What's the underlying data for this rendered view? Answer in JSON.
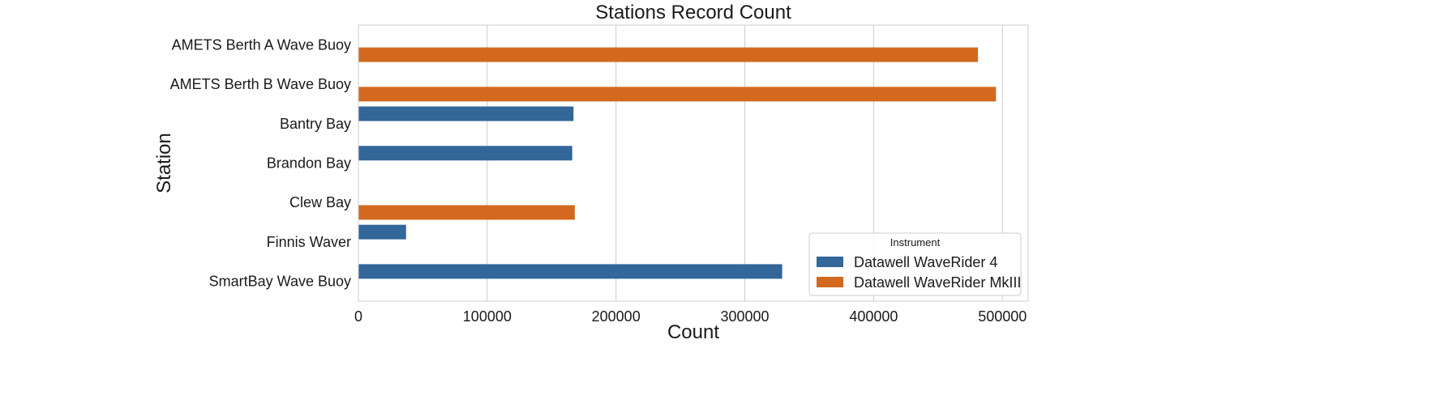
{
  "chart_data": {
    "type": "bar",
    "orientation": "horizontal",
    "title": "Stations Record Count",
    "xlabel": "Count",
    "ylabel": "Station",
    "xlim": [
      0,
      520000
    ],
    "xticks": [
      0,
      100000,
      200000,
      300000,
      400000,
      500000
    ],
    "grid": "vertical",
    "categories": [
      "AMETS Berth A Wave Buoy",
      "AMETS Berth B Wave Buoy",
      "Bantry Bay",
      "Brandon Bay",
      "Clew Bay",
      "Finnis Waver",
      "SmartBay Wave Buoy"
    ],
    "legend": {
      "title": "Instrument",
      "position": "lower-right"
    },
    "series": [
      {
        "name": "Datawell WaveRider 4",
        "color": "#336699",
        "values": [
          null,
          null,
          167000,
          166000,
          null,
          37000,
          329000
        ]
      },
      {
        "name": "Datawell WaveRider MkIII",
        "color": "#d2691e",
        "values": [
          481000,
          495000,
          null,
          null,
          168000,
          null,
          null
        ]
      }
    ]
  }
}
